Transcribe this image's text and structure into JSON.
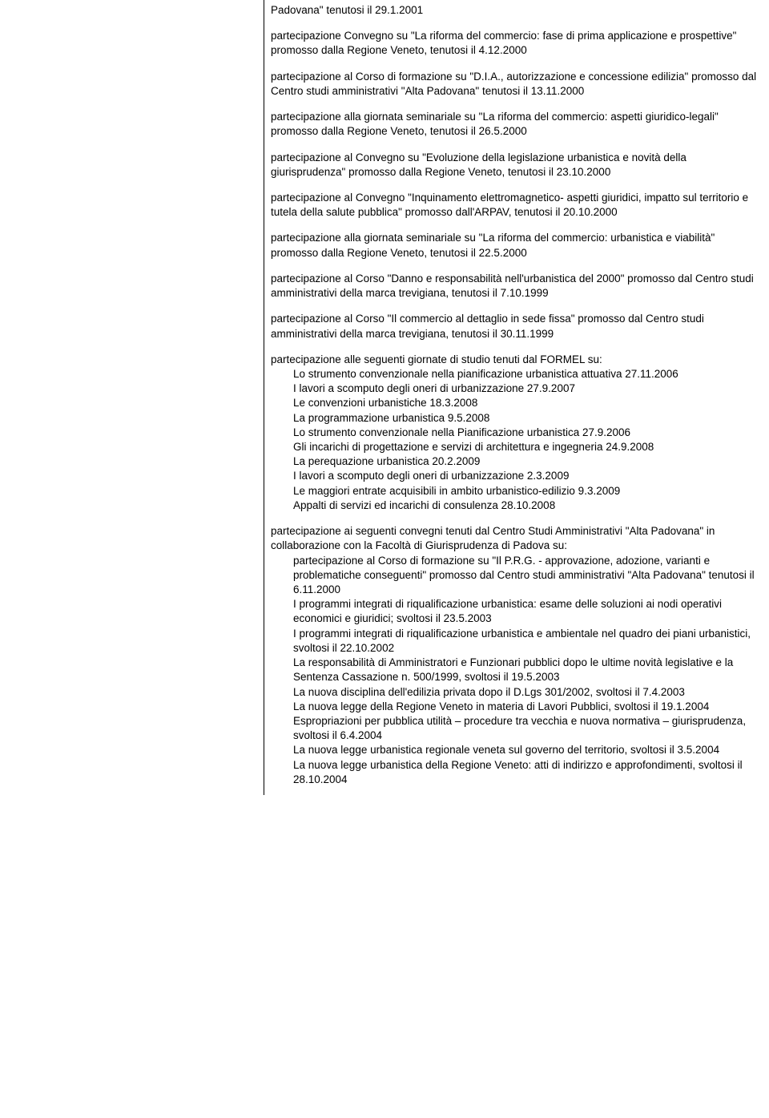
{
  "p0": "Padovana\" tenutosi il 29.1.2001",
  "p1": "partecipazione Convegno su \"La riforma del commercio: fase di prima applicazione e prospettive\" promosso dalla Regione Veneto, tenutosi il 4.12.2000",
  "p2": "partecipazione al Corso di formazione su \"D.I.A., autorizzazione e concessione edilizia\" promosso dal Centro studi amministrativi \"Alta Padovana\" tenutosi il 13.11.2000",
  "p3": "partecipazione alla giornata seminariale su \"La riforma del commercio: aspetti giuridico-legali\" promosso dalla Regione Veneto, tenutosi il 26.5.2000",
  "p4": "partecipazione al Convegno su \"Evoluzione della legislazione urbanistica e novità della giurisprudenza\" promosso dalla Regione Veneto, tenutosi il 23.10.2000",
  "p5": "partecipazione al Convegno \"Inquinamento elettromagnetico- aspetti giuridici, impatto sul territorio e tutela della salute pubblica\" promosso dall'ARPAV, tenutosi il 20.10.2000",
  "p6": "partecipazione alla giornata seminariale su \"La riforma del commercio: urbanistica e viabilità\" promosso dalla Regione Veneto, tenutosi il 22.5.2000",
  "p7": "partecipazione al Corso \"Danno e responsabilità nell'urbanistica del 2000\" promosso dal Centro studi amministrativi della marca trevigiana, tenutosi il 7.10.1999",
  "p8": "partecipazione al Corso \"Il commercio al dettaglio in sede fissa\" promosso dal Centro studi amministrativi della marca trevigiana, tenutosi il 30.11.1999",
  "p9_intro": "partecipazione alle seguenti giornate di studio tenuti dal FORMEL su:",
  "p9_items": [
    "Lo strumento convenzionale nella pianificazione urbanistica attuativa 27.11.2006",
    "I lavori a scomputo degli oneri di urbanizzazione 27.9.2007",
    "Le convenzioni urbanistiche 18.3.2008",
    "La programmazione urbanistica 9.5.2008",
    "Lo strumento convenzionale nella Pianificazione urbanistica 27.9.2006",
    "Gli incarichi di progettazione e servizi di architettura e ingegneria 24.9.2008",
    "La perequazione urbanistica 20.2.2009",
    "I lavori a scomputo degli oneri di urbanizzazione 2.3.2009",
    "Le maggiori entrate acquisibili in ambito urbanistico-edilizio 9.3.2009",
    "Appalti di servizi ed incarichi di consulenza 28.10.2008"
  ],
  "p10_intro": "partecipazione ai seguenti convegni tenuti dal Centro Studi Amministrativi \"Alta Padovana\" in collaborazione con la Facoltà di Giurisprudenza di Padova su:",
  "p10_items": [
    "partecipazione al Corso di formazione su \"Il P.R.G. - approvazione, adozione, varianti e problematiche conseguenti\" promosso dal Centro studi amministrativi \"Alta Padovana\" tenutosi il 6.11.2000",
    "I programmi integrati di riqualificazione urbanistica: esame delle soluzioni ai nodi operativi economici e giuridici; svoltosi il 23.5.2003",
    "I programmi integrati di riqualificazione urbanistica e ambientale nel quadro dei piani urbanistici, svoltosi il 22.10.2002",
    "La responsabilità di Amministratori e Funzionari pubblici dopo le ultime novità legislative e la Sentenza Cassazione n. 500/1999, svoltosi il 19.5.2003",
    "La nuova disciplina dell'edilizia privata dopo il D.Lgs 301/2002, svoltosi il 7.4.2003",
    "La nuova legge della Regione Veneto in materia di Lavori Pubblici, svoltosi il 19.1.2004",
    "Espropriazioni per pubblica utilità – procedure tra vecchia e nuova normativa – giurisprudenza, svoltosi il 6.4.2004",
    "La nuova legge urbanistica regionale veneta sul governo del territorio, svoltosi il 3.5.2004",
    "La nuova legge urbanistica della Regione Veneto: atti di indirizzo e approfondimenti, svoltosi il 28.10.2004"
  ]
}
